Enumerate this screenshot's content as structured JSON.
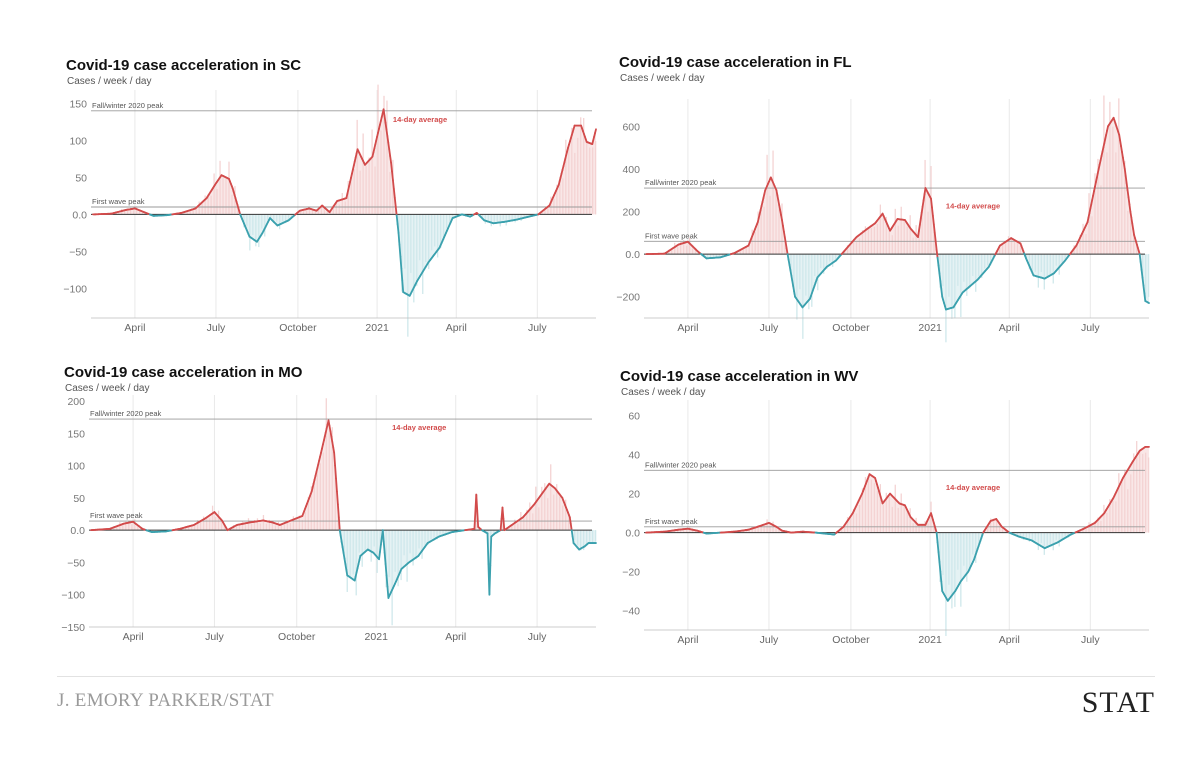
{
  "colors": {
    "positive": "#d24b4b",
    "positive_fill": "#f4d3d3",
    "negative": "#3ba1ae",
    "negative_fill": "#cfe8eb",
    "text": "#111111",
    "axis": "#888888",
    "grid": "#e9e9e9"
  },
  "credit": "J. EMORY PARKER/STAT",
  "brand": "STAT",
  "chart_data": [
    {
      "type": "area",
      "title": "Covid-19 case acceleration in SC",
      "ylabel": "Cases / week / day",
      "ylim": [
        -140,
        160
      ],
      "yticks": [
        150,
        100,
        50,
        0,
        -50,
        -100
      ],
      "ytick_labels": [
        "150",
        "100",
        "50",
        "0.0",
        "−50",
        "−100"
      ],
      "xlim": [
        0,
        540
      ],
      "xticks": [
        {
          "x": 45,
          "label": "April"
        },
        {
          "x": 132,
          "label": "July"
        },
        {
          "x": 220,
          "label": "October"
        },
        {
          "x": 305,
          "label": "2021"
        },
        {
          "x": 390,
          "label": "April"
        },
        {
          "x": 477,
          "label": "July"
        }
      ],
      "refs": [
        {
          "label": "Fall/winter 2020 peak",
          "value": 140
        },
        {
          "label": "First wave peak",
          "value": 10
        }
      ],
      "avg_label": "14-day average",
      "avg_label_x": 322,
      "avg_label_y": 125,
      "series_points": [
        [
          0,
          0
        ],
        [
          20,
          1
        ],
        [
          35,
          6
        ],
        [
          45,
          8
        ],
        [
          55,
          3
        ],
        [
          65,
          -2
        ],
        [
          80,
          -1
        ],
        [
          95,
          2
        ],
        [
          110,
          8
        ],
        [
          122,
          22
        ],
        [
          132,
          42
        ],
        [
          138,
          53
        ],
        [
          146,
          48
        ],
        [
          150,
          35
        ],
        [
          158,
          0
        ],
        [
          168,
          -30
        ],
        [
          176,
          -37
        ],
        [
          182,
          -25
        ],
        [
          190,
          -5
        ],
        [
          198,
          -15
        ],
        [
          210,
          -8
        ],
        [
          222,
          5
        ],
        [
          232,
          8
        ],
        [
          240,
          5
        ],
        [
          246,
          12
        ],
        [
          254,
          3
        ],
        [
          262,
          18
        ],
        [
          272,
          22
        ],
        [
          278,
          55
        ],
        [
          284,
          88
        ],
        [
          292,
          67
        ],
        [
          300,
          78
        ],
        [
          305,
          105
        ],
        [
          312,
          142
        ],
        [
          320,
          70
        ],
        [
          328,
          -25
        ],
        [
          333,
          -105
        ],
        [
          340,
          -110
        ],
        [
          348,
          -90
        ],
        [
          360,
          -65
        ],
        [
          372,
          -45
        ],
        [
          386,
          -5
        ],
        [
          396,
          0
        ],
        [
          405,
          -3
        ],
        [
          412,
          2
        ],
        [
          420,
          -8
        ],
        [
          430,
          -12
        ],
        [
          442,
          -10
        ],
        [
          455,
          -7
        ],
        [
          468,
          -3
        ],
        [
          478,
          0
        ],
        [
          490,
          12
        ],
        [
          500,
          40
        ],
        [
          510,
          90
        ],
        [
          517,
          120
        ],
        [
          524,
          120
        ],
        [
          530,
          98
        ],
        [
          536,
          95
        ],
        [
          540,
          115
        ]
      ]
    },
    {
      "type": "area",
      "title": "Covid-19 case acceleration in FL",
      "ylabel": "Cases / week / day",
      "ylim": [
        -300,
        700
      ],
      "yticks": [
        600,
        400,
        200,
        0,
        -200
      ],
      "ytick_labels": [
        "600",
        "400",
        "200",
        "0.0",
        "−200"
      ],
      "xlim": [
        0,
        540
      ],
      "xticks": [
        {
          "x": 45,
          "label": "April"
        },
        {
          "x": 132,
          "label": "July"
        },
        {
          "x": 220,
          "label": "October"
        },
        {
          "x": 305,
          "label": "2021"
        },
        {
          "x": 390,
          "label": "April"
        },
        {
          "x": 477,
          "label": "July"
        }
      ],
      "refs": [
        {
          "label": "Fall/winter 2020 peak",
          "value": 310
        },
        {
          "label": "First wave peak",
          "value": 60
        }
      ],
      "avg_label": "14-day average",
      "avg_label_x": 322,
      "avg_label_y": 215,
      "series_points": [
        [
          0,
          0
        ],
        [
          20,
          2
        ],
        [
          35,
          45
        ],
        [
          45,
          58
        ],
        [
          55,
          15
        ],
        [
          65,
          -20
        ],
        [
          80,
          -15
        ],
        [
          95,
          5
        ],
        [
          110,
          40
        ],
        [
          120,
          150
        ],
        [
          128,
          300
        ],
        [
          134,
          360
        ],
        [
          140,
          300
        ],
        [
          146,
          160
        ],
        [
          152,
          0
        ],
        [
          160,
          -200
        ],
        [
          168,
          -250
        ],
        [
          176,
          -210
        ],
        [
          184,
          -110
        ],
        [
          194,
          -60
        ],
        [
          204,
          -30
        ],
        [
          214,
          20
        ],
        [
          226,
          80
        ],
        [
          238,
          120
        ],
        [
          246,
          145
        ],
        [
          254,
          190
        ],
        [
          262,
          110
        ],
        [
          270,
          165
        ],
        [
          278,
          160
        ],
        [
          284,
          120
        ],
        [
          292,
          80
        ],
        [
          300,
          310
        ],
        [
          306,
          260
        ],
        [
          312,
          20
        ],
        [
          318,
          -200
        ],
        [
          322,
          -260
        ],
        [
          330,
          -250
        ],
        [
          340,
          -180
        ],
        [
          356,
          -120
        ],
        [
          368,
          -60
        ],
        [
          380,
          40
        ],
        [
          392,
          75
        ],
        [
          402,
          50
        ],
        [
          408,
          -20
        ],
        [
          416,
          -100
        ],
        [
          428,
          -115
        ],
        [
          438,
          -90
        ],
        [
          450,
          -30
        ],
        [
          462,
          40
        ],
        [
          474,
          150
        ],
        [
          486,
          400
        ],
        [
          496,
          600
        ],
        [
          502,
          640
        ],
        [
          508,
          560
        ],
        [
          514,
          400
        ],
        [
          520,
          200
        ],
        [
          524,
          90
        ],
        [
          530,
          0
        ],
        [
          536,
          -220
        ],
        [
          540,
          -230
        ]
      ]
    },
    {
      "type": "area",
      "title": "Covid-19 case acceleration in MO",
      "ylabel": "Cases / week / day",
      "ylim": [
        -150,
        200
      ],
      "yticks": [
        200,
        150,
        100,
        50,
        0,
        -50,
        -100,
        -150
      ],
      "ytick_labels": [
        "200",
        "150",
        "100",
        "50",
        "0.0",
        "−50",
        "−100",
        "−150"
      ],
      "xlim": [
        0,
        540
      ],
      "xticks": [
        {
          "x": 45,
          "label": "April"
        },
        {
          "x": 132,
          "label": "July"
        },
        {
          "x": 220,
          "label": "October"
        },
        {
          "x": 305,
          "label": "2021"
        },
        {
          "x": 390,
          "label": "April"
        },
        {
          "x": 477,
          "label": "July"
        }
      ],
      "refs": [
        {
          "label": "Fall/winter 2020 peak",
          "value": 172
        },
        {
          "label": "First wave peak",
          "value": 14
        }
      ],
      "avg_label": "14-day average",
      "avg_label_x": 322,
      "avg_label_y": 155,
      "series_points": [
        [
          0,
          0
        ],
        [
          20,
          2
        ],
        [
          35,
          10
        ],
        [
          45,
          13
        ],
        [
          55,
          2
        ],
        [
          65,
          -3
        ],
        [
          80,
          -2
        ],
        [
          95,
          2
        ],
        [
          110,
          8
        ],
        [
          122,
          18
        ],
        [
          132,
          28
        ],
        [
          140,
          15
        ],
        [
          146,
          0
        ],
        [
          156,
          8
        ],
        [
          170,
          12
        ],
        [
          184,
          15
        ],
        [
          194,
          12
        ],
        [
          202,
          8
        ],
        [
          214,
          15
        ],
        [
          226,
          22
        ],
        [
          236,
          60
        ],
        [
          246,
          120
        ],
        [
          254,
          170
        ],
        [
          260,
          120
        ],
        [
          266,
          0
        ],
        [
          274,
          -70
        ],
        [
          282,
          -78
        ],
        [
          288,
          -40
        ],
        [
          296,
          -30
        ],
        [
          302,
          -35
        ],
        [
          308,
          -45
        ],
        [
          312,
          0
        ],
        [
          318,
          -105
        ],
        [
          326,
          -80
        ],
        [
          332,
          -60
        ],
        [
          340,
          -50
        ],
        [
          350,
          -40
        ],
        [
          360,
          -20
        ],
        [
          372,
          -10
        ],
        [
          386,
          -3
        ],
        [
          400,
          0
        ],
        [
          410,
          2
        ],
        [
          412,
          55
        ],
        [
          414,
          5
        ],
        [
          418,
          0
        ],
        [
          424,
          -5
        ],
        [
          426,
          -100
        ],
        [
          428,
          -10
        ],
        [
          432,
          -5
        ],
        [
          438,
          0
        ],
        [
          440,
          35
        ],
        [
          442,
          0
        ],
        [
          450,
          8
        ],
        [
          462,
          20
        ],
        [
          474,
          40
        ],
        [
          484,
          60
        ],
        [
          490,
          72
        ],
        [
          496,
          65
        ],
        [
          504,
          50
        ],
        [
          512,
          20
        ],
        [
          516,
          -20
        ],
        [
          522,
          -30
        ],
        [
          528,
          -25
        ],
        [
          532,
          -20
        ]
      ]
    },
    {
      "type": "area",
      "title": "Covid-19 case acceleration in WV",
      "ylabel": "Cases / week / day",
      "ylim": [
        -50,
        65
      ],
      "yticks": [
        60,
        40,
        20,
        0,
        -20,
        -40
      ],
      "ytick_labels": [
        "60",
        "40",
        "20",
        "0.0",
        "−20",
        "−40"
      ],
      "xlim": [
        0,
        540
      ],
      "xticks": [
        {
          "x": 45,
          "label": "April"
        },
        {
          "x": 132,
          "label": "July"
        },
        {
          "x": 220,
          "label": "October"
        },
        {
          "x": 305,
          "label": "2021"
        },
        {
          "x": 390,
          "label": "April"
        },
        {
          "x": 477,
          "label": "July"
        }
      ],
      "refs": [
        {
          "label": "Fall/winter 2020 peak",
          "value": 32
        },
        {
          "label": "First wave peak",
          "value": 3
        }
      ],
      "avg_label": "14-day average",
      "avg_label_x": 322,
      "avg_label_y": 22,
      "series_points": [
        [
          0,
          0
        ],
        [
          20,
          0.5
        ],
        [
          35,
          1.5
        ],
        [
          45,
          2
        ],
        [
          55,
          1
        ],
        [
          65,
          -0.5
        ],
        [
          80,
          0
        ],
        [
          95,
          0.5
        ],
        [
          110,
          1.5
        ],
        [
          120,
          3
        ],
        [
          132,
          5
        ],
        [
          140,
          3
        ],
        [
          146,
          1
        ],
        [
          156,
          0
        ],
        [
          168,
          0.5
        ],
        [
          182,
          0
        ],
        [
          192,
          -0.5
        ],
        [
          202,
          -1
        ],
        [
          212,
          3
        ],
        [
          222,
          10
        ],
        [
          232,
          20
        ],
        [
          240,
          30
        ],
        [
          246,
          28
        ],
        [
          254,
          15
        ],
        [
          262,
          20
        ],
        [
          272,
          15
        ],
        [
          278,
          14
        ],
        [
          284,
          8
        ],
        [
          292,
          4
        ],
        [
          300,
          4
        ],
        [
          306,
          10
        ],
        [
          312,
          0
        ],
        [
          318,
          -30
        ],
        [
          324,
          -35
        ],
        [
          332,
          -30
        ],
        [
          338,
          -25
        ],
        [
          346,
          -20
        ],
        [
          352,
          -14
        ],
        [
          362,
          0
        ],
        [
          370,
          6
        ],
        [
          376,
          7
        ],
        [
          382,
          3
        ],
        [
          390,
          0
        ],
        [
          400,
          -2
        ],
        [
          414,
          -4
        ],
        [
          428,
          -8
        ],
        [
          442,
          -5
        ],
        [
          456,
          -1
        ],
        [
          470,
          2
        ],
        [
          482,
          5
        ],
        [
          492,
          10
        ],
        [
          502,
          18
        ],
        [
          512,
          28
        ],
        [
          522,
          36
        ],
        [
          530,
          42
        ],
        [
          536,
          44
        ],
        [
          540,
          44
        ]
      ]
    }
  ]
}
